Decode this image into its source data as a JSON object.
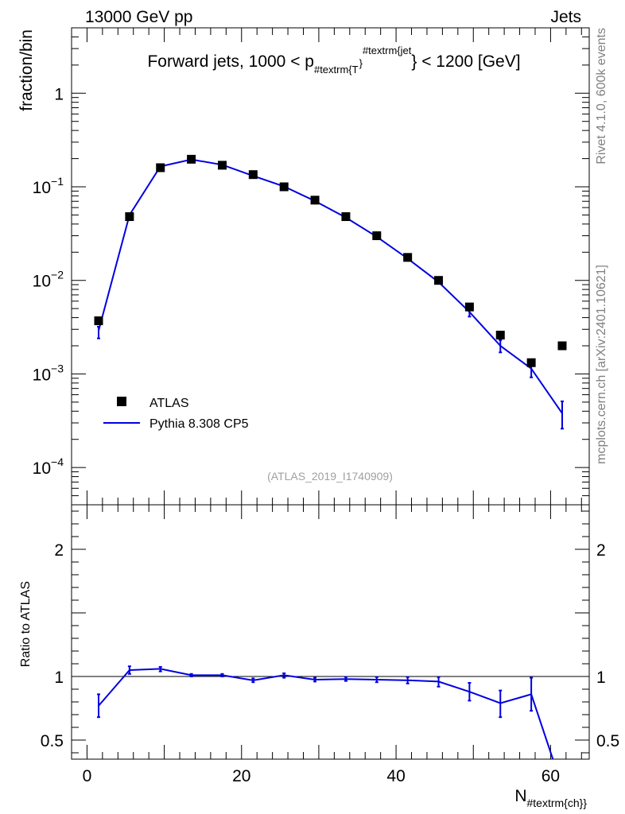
{
  "header": {
    "left": "13000 GeV pp",
    "right": "Jets"
  },
  "side_labels": {
    "rivet": "Rivet 4.1.0,  600k events",
    "mcplots": "mcplots.cern.ch [arXiv:2401.10621]"
  },
  "chart_data": [
    {
      "type": "scatter",
      "panel": "main",
      "title_main": "Forward jets, 1000 < p",
      "title_sub": "#textrm{T",
      "title_sup": "#textrm{jet",
      "title_tail": "} < 1200 [GeV]",
      "ylabel": "fraction/bin",
      "watermark": "(ATLAS_2019_I1740909)",
      "yscale": "log",
      "ylim": [
        4e-05,
        5
      ],
      "xlim": [
        -2,
        65
      ],
      "y_ticks": [
        {
          "v": 1,
          "base": "1",
          "exp": ""
        },
        {
          "v": 0.1,
          "base": "10",
          "exp": "−1"
        },
        {
          "v": 0.01,
          "base": "10",
          "exp": "−2"
        },
        {
          "v": 0.001,
          "base": "10",
          "exp": "−3"
        },
        {
          "v": 0.0001,
          "base": "10",
          "exp": "−4"
        }
      ],
      "legend": {
        "placement": "bottom-left",
        "data_label": "ATLAS",
        "mc_label": "Pythia 8.308 CP5"
      },
      "series": [
        {
          "name": "ATLAS",
          "kind": "markers",
          "color": "#000000",
          "x": [
            1.5,
            5.5,
            9.5,
            13.5,
            17.5,
            21.5,
            25.5,
            29.5,
            33.5,
            37.5,
            41.5,
            45.5,
            49.5,
            53.5,
            57.5,
            61.5
          ],
          "y": [
            0.0037,
            0.048,
            0.16,
            0.197,
            0.17,
            0.135,
            0.1,
            0.072,
            0.048,
            0.03,
            0.0176,
            0.01,
            0.0052,
            0.0026,
            0.00132,
            0.002
          ]
        },
        {
          "name": "Pythia 8.308 CP5",
          "kind": "line",
          "color": "#0000e0",
          "x": [
            1.5,
            5.5,
            9.5,
            13.5,
            17.5,
            21.5,
            25.5,
            29.5,
            33.5,
            37.5,
            41.5,
            45.5,
            49.5,
            53.5,
            57.5,
            61.5
          ],
          "y": [
            0.0029,
            0.05,
            0.165,
            0.196,
            0.172,
            0.131,
            0.101,
            0.0705,
            0.047,
            0.0293,
            0.0171,
            0.0096,
            0.0046,
            0.002,
            0.00114,
            0.00038
          ],
          "err_lo": [
            0.0024,
            0.048,
            0.162,
            0.193,
            0.169,
            0.129,
            0.099,
            0.069,
            0.046,
            0.0286,
            0.0166,
            0.0092,
            0.0041,
            0.0017,
            0.00092,
            0.00026
          ],
          "err_hi": [
            0.0032,
            0.052,
            0.168,
            0.199,
            0.175,
            0.133,
            0.103,
            0.072,
            0.048,
            0.03,
            0.0176,
            0.01,
            0.0051,
            0.0023,
            0.00136,
            0.00051
          ]
        }
      ]
    },
    {
      "type": "line",
      "panel": "ratio",
      "ylabel": "Ratio to ATLAS",
      "xlabel_main": "N",
      "xlabel_sub": "#textrm{ch}",
      "yscale": "linear",
      "ylim": [
        0.35,
        2.35
      ],
      "xlim": [
        -2,
        65
      ],
      "y_ticks": [
        {
          "v": 2,
          "label": "2"
        },
        {
          "v": 1,
          "label": "1"
        },
        {
          "v": 0.5,
          "label": "0.5"
        }
      ],
      "x_ticks": [
        {
          "v": 0,
          "label": "0"
        },
        {
          "v": 20,
          "label": "20"
        },
        {
          "v": 40,
          "label": "40"
        },
        {
          "v": 60,
          "label": "60"
        }
      ],
      "reference_line": 1,
      "series": [
        {
          "name": "Pythia 8.308 CP5",
          "color": "#0000e0",
          "x": [
            1.5,
            5.5,
            9.5,
            13.5,
            17.5,
            21.5,
            25.5,
            29.5,
            33.5,
            37.5,
            41.5,
            45.5,
            49.5,
            53.5,
            57.5
          ],
          "y": [
            0.77,
            1.05,
            1.06,
            1.01,
            1.01,
            0.97,
            1.01,
            0.975,
            0.98,
            0.975,
            0.97,
            0.96,
            0.88,
            0.79,
            0.86
          ],
          "err_lo": [
            0.68,
            1.02,
            1.04,
            1.0,
            1.0,
            0.955,
            0.99,
            0.96,
            0.965,
            0.955,
            0.945,
            0.92,
            0.81,
            0.68,
            0.73
          ],
          "err_hi": [
            0.86,
            1.08,
            1.075,
            1.02,
            1.02,
            0.985,
            1.025,
            0.99,
            0.995,
            0.995,
            0.995,
            0.995,
            0.95,
            0.89,
            0.99
          ],
          "exit_x": 60.3
        }
      ]
    }
  ]
}
